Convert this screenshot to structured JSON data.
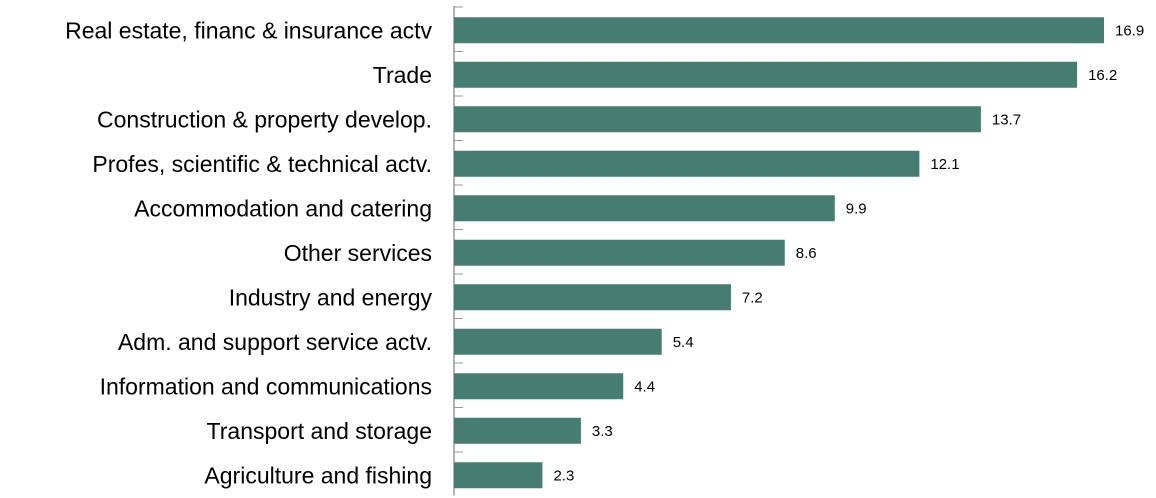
{
  "chart_data": {
    "type": "bar",
    "orientation": "horizontal",
    "title": "",
    "xlabel": "",
    "ylabel": "",
    "categories": [
      "Real estate, financ & insurance actv",
      "Trade",
      "Construction & property develop.",
      "Profes, scientific & technical actv.",
      "Accommodation and catering",
      "Other services",
      "Industry and energy",
      "Adm. and support service actv.",
      "Information and communications",
      "Transport and storage",
      "Agriculture and fishing"
    ],
    "values": [
      16.9,
      16.2,
      13.7,
      12.1,
      9.9,
      8.6,
      7.2,
      5.4,
      4.4,
      3.3,
      2.3
    ],
    "value_labels": [
      "16.9",
      "16.2",
      "13.7",
      "12.1",
      "9.9",
      "8.6",
      "7.2",
      "5.4",
      "4.4",
      "3.3",
      "2.3"
    ],
    "xlim": [
      0,
      16.9
    ],
    "grid": false,
    "legend": "none",
    "bar_color": "#467c72",
    "axis_color": "#999999"
  }
}
